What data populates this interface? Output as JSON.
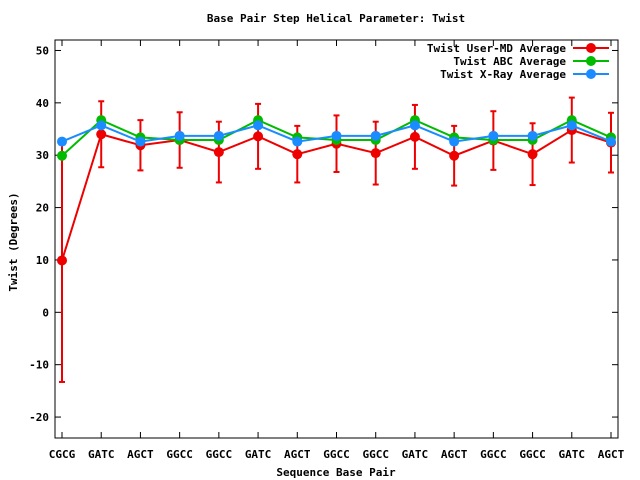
{
  "chart_data": {
    "type": "line",
    "title": "Base Pair Step Helical Parameter: Twist",
    "xlabel": "Sequence Base Pair",
    "ylabel": "Twist (Degrees)",
    "ylim": [
      -24,
      52
    ],
    "yticks": [
      -20,
      -10,
      0,
      10,
      20,
      30,
      40,
      50
    ],
    "categories": [
      "CGCG",
      "GATC",
      "AGCT",
      "GGCC",
      "GGCC",
      "GATC",
      "AGCT",
      "GGCC",
      "GGCC",
      "GATC",
      "AGCT",
      "GGCC",
      "GGCC",
      "GATC",
      "AGCT"
    ],
    "legend_position": "top-right",
    "series": [
      {
        "name": "Twist User-MD Average",
        "color": "#ee0000",
        "values": [
          9.9,
          34.0,
          31.9,
          32.9,
          30.6,
          33.6,
          30.2,
          32.2,
          30.4,
          33.5,
          29.9,
          32.8,
          30.2,
          34.8,
          32.4
        ],
        "errors": [
          23.2,
          6.3,
          4.8,
          5.3,
          5.8,
          6.2,
          5.4,
          5.4,
          6.0,
          6.1,
          5.7,
          5.6,
          5.9,
          6.2,
          5.7
        ]
      },
      {
        "name": "Twist ABC Average",
        "color": "#00bb00",
        "values": [
          29.9,
          36.7,
          33.4,
          32.9,
          32.9,
          36.7,
          33.4,
          32.9,
          32.9,
          36.7,
          33.4,
          32.9,
          32.9,
          36.7,
          33.4
        ]
      },
      {
        "name": "Twist X-Ray Average",
        "color": "#1a8cff",
        "values": [
          32.6,
          35.7,
          32.6,
          33.7,
          33.7,
          35.7,
          32.6,
          33.7,
          33.7,
          35.7,
          32.6,
          33.7,
          33.7,
          35.7,
          32.6
        ]
      }
    ]
  }
}
